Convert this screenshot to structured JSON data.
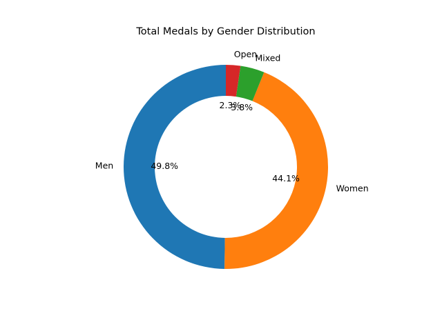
{
  "chart_data": {
    "type": "pie",
    "style": "donut",
    "title": "Total Medals by Gender Distribution",
    "start_angle_deg": 90,
    "direction": "counterclockwise",
    "slices": [
      {
        "label": "Men",
        "percent": 49.8,
        "pct_label": "49.8%",
        "color": "#1f77b4"
      },
      {
        "label": "Women",
        "percent": 44.1,
        "pct_label": "44.1%",
        "color": "#ff7f0e"
      },
      {
        "label": "Mixed",
        "percent": 3.8,
        "pct_label": "3.8%",
        "color": "#2ca02c"
      },
      {
        "label": "Open",
        "percent": 2.3,
        "pct_label": "2.3%",
        "color": "#d62728"
      }
    ]
  }
}
